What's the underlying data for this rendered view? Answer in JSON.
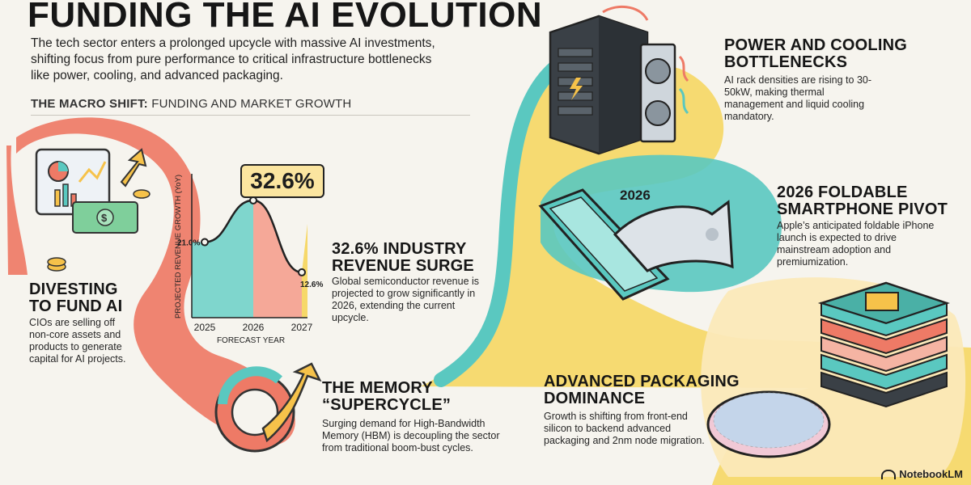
{
  "title": "FUNDING THE AI EVOLUTION",
  "intro": "The tech sector enters a prolonged upcycle with massive AI investments, shifting focus from pure performance to critical infrastructure bottlenecks like power, cooling, and advanced packaging.",
  "macro": {
    "bold": "THE MACRO SHIFT:",
    "rest": " FUNDING AND MARKET GROWTH"
  },
  "sections": {
    "divesting": {
      "title": "DIVESTING\nTO FUND AI",
      "body": "CIOs are selling off non-core assets and products to generate capital for AI projects."
    },
    "revenue": {
      "title": "32.6% INDUSTRY\nREVENUE SURGE",
      "body": "Global semiconductor revenue is projected to grow significantly in 2026, extending the current upcycle."
    },
    "memory": {
      "title": "THE MEMORY\n“SUPERCYCLE”",
      "body": "Surging demand for High-Bandwidth Memory (HBM) is decoupling the sector from traditional boom-bust cycles."
    },
    "power": {
      "title": "POWER AND COOLING\nBOTTLENECKS",
      "body": "AI rack densities are rising to 30-50kW, making thermal management and liquid cooling mandatory."
    },
    "foldable": {
      "title": "2026 FOLDABLE\nSMARTPHONE PIVOT",
      "body": "Apple’s anticipated foldable iPhone launch is expected to drive mainstream adoption and premiumization.",
      "year_label": "2026"
    },
    "packaging": {
      "title": "ADVANCED PACKAGING\nDOMINANCE",
      "body": "Growth is shifting from front-end silicon to backend advanced packaging and 2nm node migration."
    }
  },
  "footer": {
    "brand": "NotebookLM"
  },
  "chart_data": {
    "type": "area",
    "x": [
      "2025",
      "2026",
      "2027"
    ],
    "series": [
      {
        "values": [
          21.0,
          32.6,
          12.6
        ]
      }
    ],
    "data_labels": [
      "21.0%",
      "32.6%",
      "12.6%"
    ],
    "highlight": "32.6%",
    "xlabel": "FORECAST YEAR",
    "ylabel": "PROJECTED REVENUE GROWTH (YoY)",
    "ylim": [
      0,
      40
    ]
  }
}
